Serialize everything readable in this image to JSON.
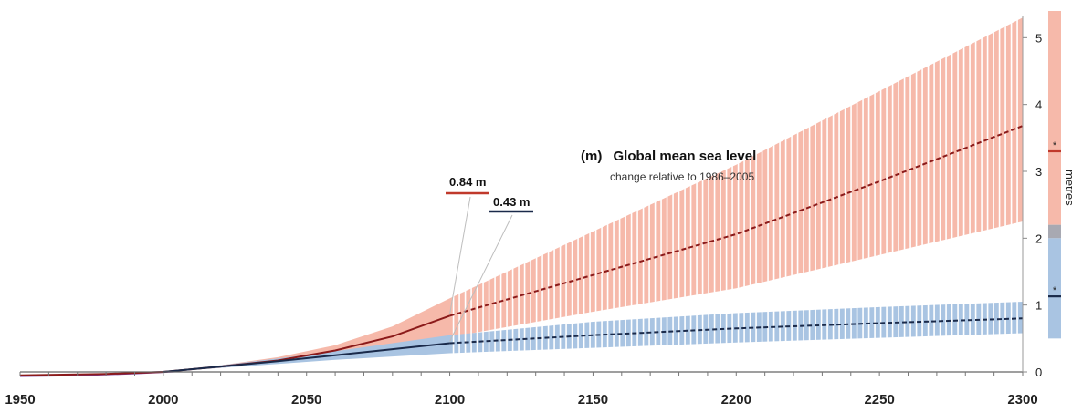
{
  "chart_data": {
    "type": "line",
    "panel_label": "(m)",
    "title": "Global mean sea level",
    "subtitle": "change relative to 1986–2005",
    "ylabel": "metres",
    "xlim": [
      1950,
      2300
    ],
    "ylim": [
      0,
      5.4
    ],
    "x_ticks": [
      1950,
      2000,
      2050,
      2100,
      2150,
      2200,
      2250,
      2300
    ],
    "y_ticks": [
      0,
      1,
      2,
      3,
      4,
      5
    ],
    "series": [
      {
        "color": "#8b1a1a",
        "band_color": "#f6b9aa",
        "mean": [
          {
            "x": 1950,
            "y": -0.05
          },
          {
            "x": 1980,
            "y": -0.03
          },
          {
            "x": 2000,
            "y": 0.0
          },
          {
            "x": 2020,
            "y": 0.08
          },
          {
            "x": 2040,
            "y": 0.17
          },
          {
            "x": 2060,
            "y": 0.32
          },
          {
            "x": 2080,
            "y": 0.53
          },
          {
            "x": 2100,
            "y": 0.84
          },
          {
            "x": 2150,
            "y": 1.45
          },
          {
            "x": 2200,
            "y": 2.06
          },
          {
            "x": 2250,
            "y": 2.85
          },
          {
            "x": 2300,
            "y": 3.68
          }
        ],
        "band": [
          {
            "x": 2000,
            "lo": 0.0,
            "hi": 0.01
          },
          {
            "x": 2020,
            "lo": 0.06,
            "hi": 0.1
          },
          {
            "x": 2040,
            "lo": 0.13,
            "hi": 0.22
          },
          {
            "x": 2060,
            "lo": 0.24,
            "hi": 0.4
          },
          {
            "x": 2080,
            "lo": 0.38,
            "hi": 0.68
          },
          {
            "x": 2100,
            "lo": 0.52,
            "hi": 1.1
          },
          {
            "x": 2150,
            "lo": 0.9,
            "hi": 2.1
          },
          {
            "x": 2200,
            "lo": 1.25,
            "hi": 3.1
          },
          {
            "x": 2250,
            "lo": 1.75,
            "hi": 4.2
          },
          {
            "x": 2300,
            "lo": 2.25,
            "hi": 5.3
          }
        ]
      },
      {
        "color": "#1a2a4a",
        "band_color": "#a9c4e2",
        "mean": [
          {
            "x": 2000,
            "y": 0.0
          },
          {
            "x": 2020,
            "y": 0.08
          },
          {
            "x": 2040,
            "y": 0.16
          },
          {
            "x": 2060,
            "y": 0.25
          },
          {
            "x": 2080,
            "y": 0.34
          },
          {
            "x": 2100,
            "y": 0.43
          },
          {
            "x": 2150,
            "y": 0.55
          },
          {
            "x": 2200,
            "y": 0.65
          },
          {
            "x": 2250,
            "y": 0.73
          },
          {
            "x": 2300,
            "y": 0.8
          }
        ],
        "band": [
          {
            "x": 2000,
            "lo": 0.0,
            "hi": 0.01
          },
          {
            "x": 2020,
            "lo": 0.06,
            "hi": 0.1
          },
          {
            "x": 2040,
            "lo": 0.12,
            "hi": 0.2
          },
          {
            "x": 2060,
            "lo": 0.18,
            "hi": 0.31
          },
          {
            "x": 2080,
            "lo": 0.23,
            "hi": 0.43
          },
          {
            "x": 2100,
            "lo": 0.28,
            "hi": 0.55
          },
          {
            "x": 2150,
            "lo": 0.36,
            "hi": 0.75
          },
          {
            "x": 2200,
            "lo": 0.44,
            "hi": 0.88
          },
          {
            "x": 2250,
            "lo": 0.51,
            "hi": 0.97
          },
          {
            "x": 2300,
            "lo": 0.58,
            "hi": 1.05
          }
        ]
      }
    ],
    "historical": {
      "color": "#7a3fa0",
      "points": [
        {
          "x": 1950,
          "y": -0.06
        },
        {
          "x": 1970,
          "y": -0.05
        },
        {
          "x": 1990,
          "y": -0.02
        },
        {
          "x": 2005,
          "y": 0.01
        }
      ]
    },
    "annotations": [
      {
        "label": "0.84 m",
        "color": "#c0392b",
        "x": 2100,
        "y": 0.84
      },
      {
        "label": "0.43 m",
        "color": "#1a2a4a",
        "x": 2100,
        "y": 0.43
      }
    ],
    "side_bars": [
      {
        "color": "#f6b9aa",
        "lo": 0.5,
        "hi": 5.4,
        "mark": 3.3,
        "mark_color": "#c0392b"
      },
      {
        "color": "#a9c4e2",
        "lo": 0.5,
        "hi": 2.2,
        "mark": 1.13,
        "mark_color": "#1a2a4a"
      }
    ],
    "side_overlap_color": "#a8a9b2",
    "side_marker": "*"
  }
}
